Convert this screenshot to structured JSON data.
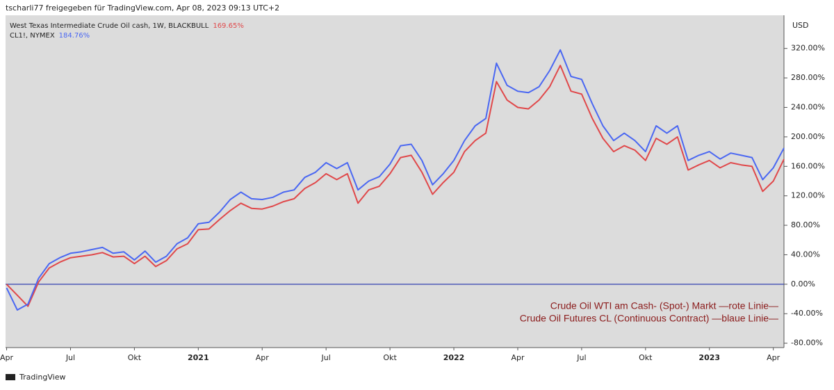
{
  "header": "tscharli77 freigegeben für TradingView.com, Apr 08, 2023 09:13 UTC+2",
  "footer": "TradingView",
  "chart_data": {
    "type": "line",
    "y_unit": "USD",
    "annotation": [
      "Crude Oil WTI am Cash- (Spot-) Markt —rote Linie—",
      "Crude Oil Futures CL (Continuous Contract) —blaue Linie—"
    ],
    "series": [
      {
        "name": "West Texas Intermediate Crude Oil cash, 1W, BLACKBULL",
        "color": "#e0484a",
        "last_label": "169.65%",
        "values": [
          0,
          -15,
          -30,
          3,
          22,
          30,
          36,
          38,
          40,
          43,
          37,
          38,
          28,
          38,
          24,
          32,
          48,
          55,
          74,
          75,
          88,
          100,
          110,
          103,
          102,
          106,
          112,
          116,
          130,
          138,
          150,
          142,
          150,
          110,
          128,
          133,
          150,
          172,
          175,
          152,
          122,
          138,
          152,
          180,
          195,
          205,
          275,
          250,
          240,
          238,
          250,
          268,
          297,
          262,
          258,
          225,
          198,
          180,
          188,
          182,
          168,
          198,
          190,
          200,
          155,
          162,
          168,
          158,
          165,
          162,
          160,
          126,
          140,
          169.65
        ]
      },
      {
        "name": "CL1!, NYMEX",
        "color": "#4a67f2",
        "last_label": "184.76%",
        "values": [
          -5,
          -35,
          -27,
          8,
          28,
          36,
          42,
          44,
          47,
          50,
          42,
          44,
          33,
          45,
          30,
          38,
          55,
          63,
          82,
          84,
          98,
          115,
          125,
          116,
          115,
          118,
          125,
          128,
          145,
          152,
          165,
          157,
          165,
          128,
          140,
          146,
          163,
          188,
          190,
          168,
          135,
          150,
          168,
          195,
          215,
          225,
          300,
          270,
          262,
          260,
          268,
          290,
          318,
          282,
          278,
          245,
          215,
          195,
          205,
          195,
          180,
          215,
          205,
          215,
          168,
          175,
          180,
          170,
          178,
          175,
          172,
          142,
          158,
          184.76
        ]
      }
    ],
    "xlim": [
      -0.1,
      73
    ],
    "xticks": [
      {
        "value": 0,
        "label": "Apr"
      },
      {
        "value": 6,
        "label": "Jul"
      },
      {
        "value": 12,
        "label": "Okt"
      },
      {
        "value": 18,
        "label": "2021"
      },
      {
        "value": 24,
        "label": "Apr"
      },
      {
        "value": 30,
        "label": "Jul"
      },
      {
        "value": 36,
        "label": "Okt"
      },
      {
        "value": 42,
        "label": "2022"
      },
      {
        "value": 48,
        "label": "Apr"
      },
      {
        "value": 54,
        "label": "Jul"
      },
      {
        "value": 60,
        "label": "Okt"
      },
      {
        "value": 66,
        "label": "2023"
      },
      {
        "value": 72,
        "label": "Apr"
      }
    ],
    "ylim": [
      -86,
      365
    ],
    "yticks": [
      {
        "value": -80,
        "label": "-80.00%"
      },
      {
        "value": -40,
        "label": "-40.00%"
      },
      {
        "value": 0,
        "label": "0.00%"
      },
      {
        "value": 40,
        "label": "40.00%"
      },
      {
        "value": 80,
        "label": "80.00%"
      },
      {
        "value": 120,
        "label": "120.00%"
      },
      {
        "value": 160,
        "label": "160.00%"
      },
      {
        "value": 200,
        "label": "200.00%"
      },
      {
        "value": 240,
        "label": "240.00%"
      },
      {
        "value": 280,
        "label": "280.00%"
      },
      {
        "value": 320,
        "label": "320.00%"
      }
    ],
    "zero_line_color": "#2f3fb0",
    "grid": false
  }
}
